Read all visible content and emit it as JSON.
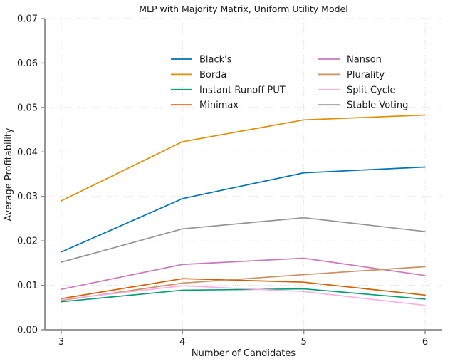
{
  "chart_data": {
    "type": "line",
    "title": "MLP with Majority Matrix, Uniform Utility Model",
    "xlabel": "Number of Candidates",
    "ylabel": "Average Profitability",
    "x": [
      3,
      4,
      5,
      6
    ],
    "xticks": [
      3,
      4,
      5,
      6
    ],
    "yticks": [
      0.0,
      0.01,
      0.02,
      0.03,
      0.04,
      0.05,
      0.06,
      0.07
    ],
    "xlim": [
      2.865,
      6.141
    ],
    "ylim": [
      0,
      0.07
    ],
    "grid": true,
    "grid_style": "dotted light gray, horizontal and vertical",
    "legend_position": "upper center inside plot, two columns, frameless",
    "series": [
      {
        "name": "Black's",
        "color": "#0173b2",
        "values": [
          0.0175,
          0.0295,
          0.0353,
          0.0366
        ]
      },
      {
        "name": "Borda",
        "color": "#de8f05",
        "values": [
          0.029,
          0.0423,
          0.0472,
          0.0483
        ]
      },
      {
        "name": "Instant Runoff PUT",
        "color": "#029e73",
        "values": [
          0.0063,
          0.0089,
          0.0092,
          0.0069
        ]
      },
      {
        "name": "Minimax",
        "color": "#d55e00",
        "values": [
          0.007,
          0.0115,
          0.0107,
          0.0078
        ]
      },
      {
        "name": "Nanson",
        "color": "#cc78bc",
        "values": [
          0.0091,
          0.0147,
          0.0161,
          0.0122
        ]
      },
      {
        "name": "Plurality",
        "color": "#ca9161",
        "values": [
          0.0066,
          0.0105,
          0.0124,
          0.0142
        ]
      },
      {
        "name": "Split Cycle",
        "color": "#fbafe4",
        "values": [
          0.0068,
          0.0099,
          0.0086,
          0.0055
        ]
      },
      {
        "name": "Stable Voting",
        "color": "#949494",
        "values": [
          0.0152,
          0.0227,
          0.0252,
          0.0221
        ]
      }
    ],
    "style": {
      "background": "#ffffff",
      "spine_color": "#8a8a8a",
      "grid_color": "#d9d9d9",
      "tick_label_color": "#1a1a1a",
      "line_width": 1.7
    }
  }
}
